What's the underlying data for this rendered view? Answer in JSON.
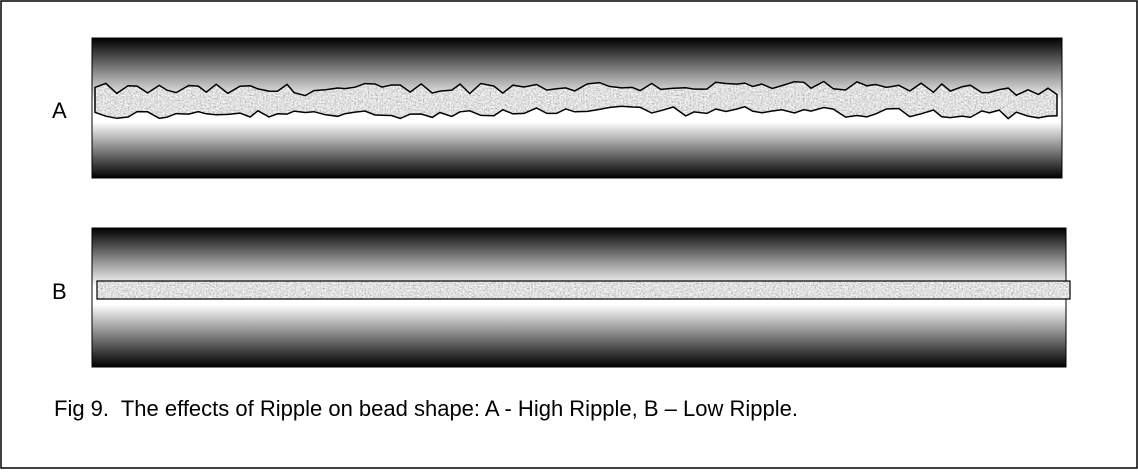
{
  "figure": {
    "panels": [
      {
        "label": "A"
      },
      {
        "label": "B"
      }
    ],
    "caption": "Fig 9.  The effects of Ripple on bead shape: A - High Ripple, B – Low Ripple."
  }
}
